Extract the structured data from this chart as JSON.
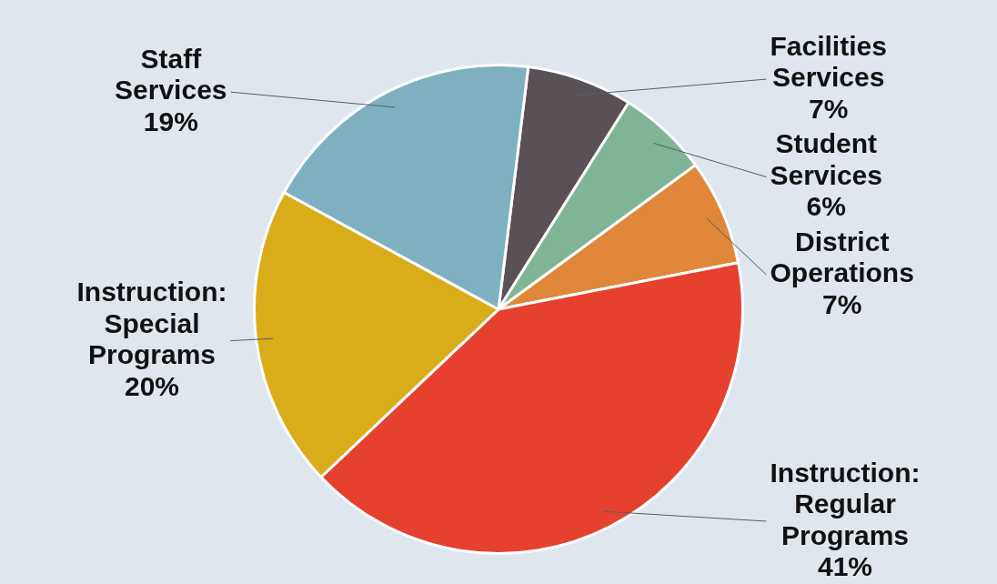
{
  "chart_data": {
    "type": "pie",
    "categories": [
      "Facilities Services",
      "Student Services",
      "District Operations",
      "Instruction: Regular Programs",
      "Instruction: Special Programs",
      "Staff Services"
    ],
    "values": [
      7,
      6,
      7,
      41,
      20,
      19
    ],
    "colors": [
      "#5a5157",
      "#7fb596",
      "#e0873a",
      "#e6402f",
      "#d9ac1a",
      "#7fb0bf"
    ],
    "value_labels": [
      "7%",
      "6%",
      "7%",
      "41%",
      "20%",
      "19%"
    ],
    "legend": false
  }
}
